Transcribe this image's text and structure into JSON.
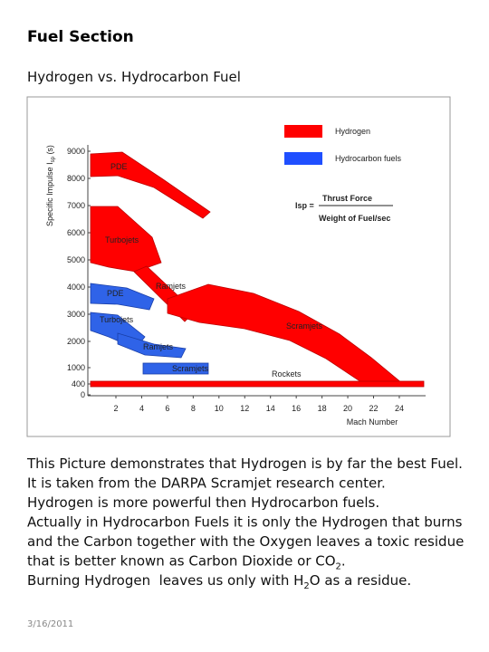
{
  "header": {
    "title": "Fuel Section",
    "subtitle": "Hydrogen vs. Hydrocarbon Fuel"
  },
  "figure": {
    "y_axis_label": [
      "Specific Impulse I",
      "sp",
      " (s)"
    ],
    "yticks": [
      "9000",
      "8000",
      "7000",
      "6000",
      "5000",
      "4000",
      "3000",
      "2000",
      "1000",
      "400",
      "0"
    ],
    "xticks": [
      "2",
      "4",
      "6",
      "8",
      "10",
      "12",
      "14",
      "16",
      "18",
      "20",
      "22",
      "24"
    ],
    "x_axis_label": "Mach Number",
    "legend": [
      "Hydrogen",
      "Hydrocarbon fuels"
    ],
    "formula": {
      "lhs": "Isp =",
      "numerator": "Thrust Force",
      "denominator": "Weight of Fuel/sec"
    },
    "hydrogen_labels": [
      "PDE",
      "Turbojets",
      "Ramjets",
      "Scramjets",
      "Rockets"
    ],
    "hydrocarbon_labels": [
      "PDE",
      "Turbojets",
      "Ramjets",
      "Scramjets"
    ]
  },
  "body": {
    "lines": [
      [
        "This Picture demonstrates that Hydrogen is by far the best Fuel."
      ],
      [
        "It is taken from the DARPA Scramjet research center."
      ],
      [
        "Hydrogen is more powerful then Hydrocarbon fuels."
      ],
      [
        "Actually in Hydrocarbon Fuels it is only the Hydrogen that burns"
      ],
      [
        "and the Carbon together with the Oxygen leaves a toxic residue"
      ],
      [
        "that is better known as Carbon Dioxide or CO",
        "2",
        "."
      ],
      [
        "Burning Hydrogen  leaves us only with H",
        "2",
        "O as a residue."
      ]
    ]
  },
  "footer": {
    "date": "3/16/2011"
  }
}
